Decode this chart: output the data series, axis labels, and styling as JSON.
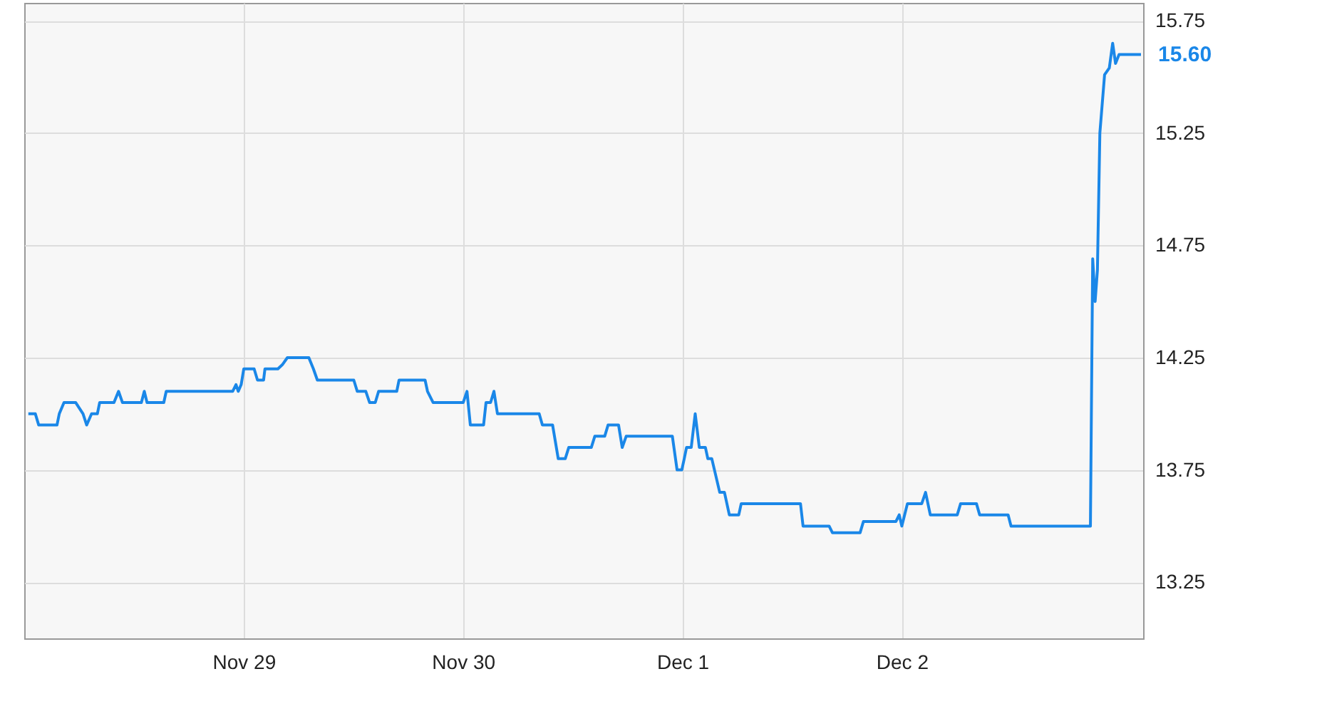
{
  "chart_data": {
    "type": "line",
    "annotations": [
      {
        "text": "15.60",
        "x": "--12-03T02:10",
        "y": 15.6
      }
    ],
    "x": [
      "--11-28T00:27",
      "--11-28T01:13",
      "--11-28T01:35",
      "--11-28T03:35",
      "--11-28T03:50",
      "--11-28T04:21",
      "--11-28T05:38",
      "--11-28T06:26",
      "--11-28T06:50",
      "--11-28T07:22",
      "--11-28T08:00",
      "--11-28T08:15",
      "--11-28T09:49",
      "--11-28T10:19",
      "--11-28T10:45",
      "--11-28T12:49",
      "--11-28T13:08",
      "--11-28T13:26",
      "--11-28T15:16",
      "--11-28T15:32",
      "--11-28T22:48",
      "--11-28T23:10",
      "--11-28T23:25",
      "--11-28T23:44",
      "--11-29T00:01",
      "--11-29T01:09",
      "--11-29T01:31",
      "--11-29T02:11",
      "--11-29T02:20",
      "--11-29T03:45",
      "--11-29T04:16",
      "--11-29T04:47",
      "--11-29T07:08",
      "--11-29T07:38",
      "--11-29T08:04",
      "--11-29T12:03",
      "--11-29T12:26",
      "--11-29T13:22",
      "--11-29T13:47",
      "--11-29T14:24",
      "--11-29T14:46",
      "--11-29T16:45",
      "--11-29T17:00",
      "--11-29T19:51",
      "--11-29T20:07",
      "--11-29T20:44",
      "--11-30T00:01",
      "--11-30T00:26",
      "--11-30T00:48",
      "--11-30T02:15",
      "--11-30T02:31",
      "--11-30T03:01",
      "--11-30T03:23",
      "--11-30T03:46",
      "--11-30T08:20",
      "--11-30T08:41",
      "--11-30T09:48",
      "--11-30T10:25",
      "--11-30T11:11",
      "--11-30T11:34",
      "--11-30T14:02",
      "--11-30T14:25",
      "--11-30T15:30",
      "--11-30T15:52",
      "--11-30T17:01",
      "--11-30T17:25",
      "--11-30T17:51",
      "--11-30T22:54",
      "--11-30T23:25",
      "--11-30T23:56",
      "--12-01T00:12",
      "--12-01T00:27",
      "--12-01T00:58",
      "--12-01T01:24",
      "--12-01T01:51",
      "--12-01T02:31",
      "--12-01T02:47",
      "--12-01T03:13",
      "--12-01T04:05",
      "--12-01T04:36",
      "--12-01T05:08",
      "--12-01T06:10",
      "--12-01T06:26",
      "--12-01T12:55",
      "--12-01T13:12",
      "--12-01T16:03",
      "--12-01T16:25",
      "--12-01T19:26",
      "--12-01T19:48",
      "--12-01T23:21",
      "--12-01T23:43",
      "--12-02T00:00",
      "--12-02T00:37",
      "--12-02T02:11",
      "--12-02T02:36",
      "--12-02T03:07",
      "--12-02T06:04",
      "--12-02T06:26",
      "--12-02T08:10",
      "--12-02T08:31",
      "--12-02T11:38",
      "--12-02T11:57",
      "--12-02T20:38",
      "--12-02T20:53",
      "--12-02T21:09",
      "--12-02T21:24",
      "--12-02T21:40",
      "--12-02T22:11",
      "--12-02T22:42",
      "--12-02T23:04",
      "--12-02T23:23",
      "--12-02T23:46",
      "--12-03T02:10"
    ],
    "series": [
      {
        "color": "#1a87e8",
        "values": [
          14.0,
          14.0,
          13.95,
          13.95,
          14.0,
          14.05,
          14.05,
          14.0,
          13.95,
          14.0,
          14.0,
          14.05,
          14.05,
          14.1,
          14.05,
          14.05,
          14.1,
          14.05,
          14.05,
          14.1,
          14.1,
          14.13,
          14.1,
          14.13,
          14.2,
          14.2,
          14.15,
          14.15,
          14.2,
          14.2,
          14.22,
          14.25,
          14.25,
          14.2,
          14.15,
          14.15,
          14.1,
          14.1,
          14.05,
          14.05,
          14.1,
          14.1,
          14.15,
          14.15,
          14.1,
          14.05,
          14.05,
          14.1,
          13.95,
          13.95,
          14.05,
          14.05,
          14.1,
          14.0,
          14.0,
          13.95,
          13.95,
          13.8,
          13.8,
          13.85,
          13.85,
          13.9,
          13.9,
          13.95,
          13.95,
          13.85,
          13.9,
          13.9,
          13.75,
          13.75,
          13.8,
          13.85,
          13.85,
          14.0,
          13.85,
          13.85,
          13.8,
          13.8,
          13.65,
          13.65,
          13.55,
          13.55,
          13.6,
          13.6,
          13.5,
          13.5,
          13.47,
          13.47,
          13.52,
          13.52,
          13.55,
          13.5,
          13.6,
          13.6,
          13.65,
          13.55,
          13.55,
          13.6,
          13.6,
          13.55,
          13.55,
          13.5,
          13.5,
          14.69,
          14.5,
          14.64,
          15.25,
          15.51,
          15.54,
          15.65,
          15.56,
          15.6,
          15.6
        ]
      }
    ],
    "xlim": [
      "--11-28T00:00",
      "--12-03T02:24"
    ],
    "xticks": [
      {
        "value": "--11-29",
        "label": "Nov 29"
      },
      {
        "value": "--11-30",
        "label": "Nov 30"
      },
      {
        "value": "--12-01",
        "label": "Dec 1"
      },
      {
        "value": "--12-02",
        "label": "Dec 2"
      }
    ],
    "ylim": [
      13.0,
      15.83
    ],
    "yticks": [
      13.25,
      13.75,
      14.25,
      14.75,
      15.25,
      15.75
    ],
    "grid": true,
    "line_style": "solid"
  }
}
